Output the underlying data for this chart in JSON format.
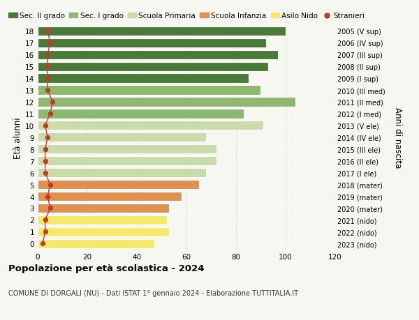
{
  "ages": [
    0,
    1,
    2,
    3,
    4,
    5,
    6,
    7,
    8,
    9,
    10,
    11,
    12,
    13,
    14,
    15,
    16,
    17,
    18
  ],
  "values": [
    47,
    53,
    52,
    53,
    58,
    65,
    68,
    72,
    72,
    68,
    91,
    83,
    104,
    90,
    85,
    93,
    97,
    92,
    100
  ],
  "stranieri": [
    2,
    3,
    3,
    5,
    4,
    5,
    3,
    3,
    3,
    4,
    3,
    5,
    6,
    4,
    4,
    4,
    4,
    5,
    4
  ],
  "years": [
    "2023 (nido)",
    "2022 (nido)",
    "2021 (nido)",
    "2020 (mater)",
    "2019 (mater)",
    "2018 (mater)",
    "2017 (I ele)",
    "2016 (II ele)",
    "2015 (III ele)",
    "2014 (IV ele)",
    "2013 (V ele)",
    "2012 (I med)",
    "2011 (II med)",
    "2010 (III med)",
    "2009 (I sup)",
    "2008 (II sup)",
    "2007 (III sup)",
    "2006 (IV sup)",
    "2005 (V sup)"
  ],
  "bar_colors": [
    "#f5e96a",
    "#f5e96a",
    "#f5e96a",
    "#e09050",
    "#e09050",
    "#e09050",
    "#c8dba8",
    "#c8dba8",
    "#c8dba8",
    "#c8dba8",
    "#c8dba8",
    "#8db870",
    "#8db870",
    "#8db870",
    "#4a7a3a",
    "#4a7a3a",
    "#4a7a3a",
    "#4a7a3a",
    "#4a7a3a"
  ],
  "stranieri_color": "#c0392b",
  "title": "Popolazione per età scolastica - 2024",
  "subtitle": "COMUNE DI DORGALI (NU) - Dati ISTAT 1° gennaio 2024 - Elaborazione TUTTITALIA.IT",
  "ylabel": "Età alunni",
  "right_ylabel": "Anni di nascita",
  "xlim": [
    0,
    120
  ],
  "xticks": [
    0,
    20,
    40,
    60,
    80,
    100,
    120
  ],
  "legend_labels": [
    "Sec. II grado",
    "Sec. I grado",
    "Scuola Primaria",
    "Scuola Infanzia",
    "Asilo Nido",
    "Stranieri"
  ],
  "legend_colors": [
    "#4a7a3a",
    "#8db870",
    "#c8dba8",
    "#e09050",
    "#f5e96a",
    "#c0392b"
  ],
  "bg_color": "#f7f7f2",
  "bar_height": 0.78,
  "grid_color": "#dddddd"
}
